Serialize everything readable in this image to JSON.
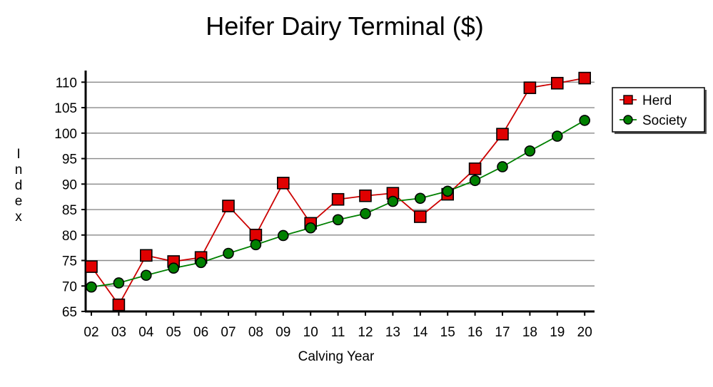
{
  "chart_data": {
    "type": "line",
    "title": "Heifer Dairy Terminal ($)",
    "xlabel": "Calving Year",
    "ylabel": "Index",
    "categories": [
      "02",
      "03",
      "04",
      "05",
      "06",
      "07",
      "08",
      "09",
      "10",
      "11",
      "12",
      "13",
      "14",
      "15",
      "16",
      "17",
      "18",
      "19",
      "20"
    ],
    "ylim": [
      65,
      112
    ],
    "yticks": [
      65,
      70,
      75,
      80,
      85,
      90,
      95,
      100,
      105,
      110
    ],
    "grid": true,
    "legend_position": "right",
    "series": [
      {
        "name": "Herd",
        "marker": "square",
        "line_color": "#cc0000",
        "marker_fill": "#e00000",
        "values": [
          73.8,
          66.3,
          76.0,
          74.8,
          75.6,
          85.7,
          80.0,
          90.2,
          82.3,
          87.0,
          87.7,
          88.2,
          83.6,
          88.0,
          93.0,
          99.8,
          108.9,
          109.8,
          110.8
        ]
      },
      {
        "name": "Society",
        "marker": "circle",
        "line_color": "#008000",
        "marker_fill": "#008000",
        "values": [
          69.8,
          70.6,
          72.1,
          73.5,
          74.6,
          76.4,
          78.1,
          79.9,
          81.4,
          83.0,
          84.2,
          86.6,
          87.2,
          88.6,
          90.7,
          93.4,
          96.5,
          99.4,
          102.5
        ]
      }
    ]
  }
}
